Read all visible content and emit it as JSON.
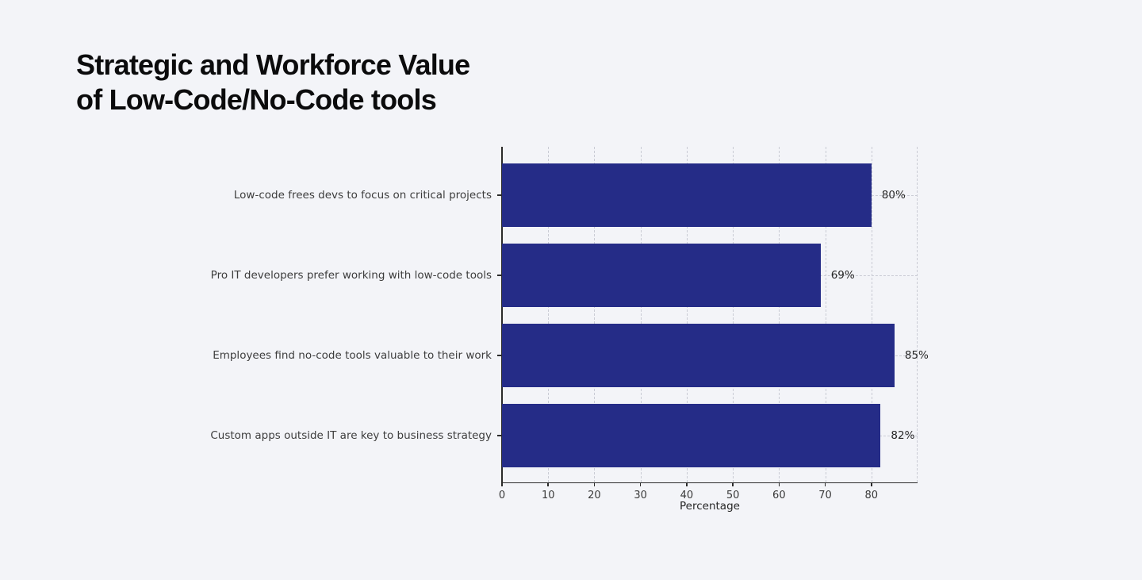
{
  "page": {
    "background": "#f3f4f8",
    "title_line1": "Strategic and Workforce Value",
    "title_line2": "of Low-Code/No-Code tools"
  },
  "chart_data": {
    "type": "bar",
    "orientation": "horizontal",
    "title": "Strategic and Workforce Value of Low-Code/No-Code tools",
    "categories": [
      "Low-code frees devs to focus on critical projects",
      "Pro IT developers prefer working with low-code tools",
      "Employees find no-code tools valuable to their work",
      "Custom apps outside IT are key to business strategy"
    ],
    "values": [
      80,
      69,
      85,
      82
    ],
    "value_labels": [
      "80%",
      "69%",
      "85%",
      "82%"
    ],
    "xlabel": "Percentage",
    "ylabel": "",
    "xticks": [
      0,
      10,
      20,
      30,
      40,
      50,
      60,
      70,
      80
    ],
    "xlim": [
      0,
      90
    ],
    "grid": "dashed, both axes",
    "legend": "none",
    "bar_color": "#252c87",
    "background_color": "#f3f4f8",
    "label_color": "#3d3d3d",
    "value_label_color": "#262626"
  }
}
